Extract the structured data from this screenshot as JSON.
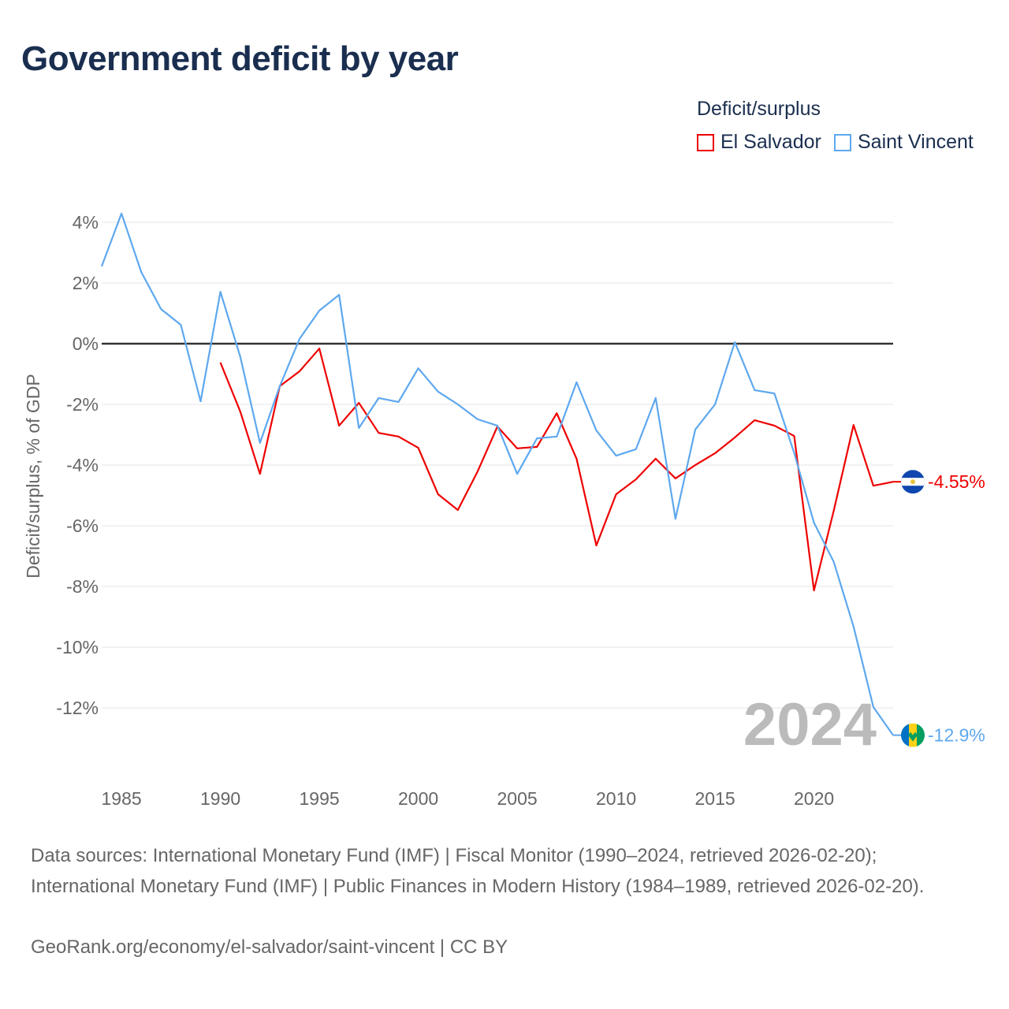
{
  "title": "Government deficit by year",
  "legend": {
    "title": "Deficit/surplus",
    "items": [
      {
        "name": "El Salvador",
        "color": "#ee0000"
      },
      {
        "name": "Saint Vincent",
        "color": "#5ea8ee"
      }
    ]
  },
  "chart_data": {
    "type": "line",
    "title": "Government deficit by year",
    "xlabel": "",
    "ylabel": "Deficit/surplus, % of GDP",
    "xlim": [
      1984,
      2024
    ],
    "ylim": [
      -13,
      4.5
    ],
    "x_ticks": [
      1985,
      1990,
      1995,
      2000,
      2005,
      2010,
      2015,
      2020
    ],
    "y_ticks": [
      4,
      2,
      0,
      -2,
      -4,
      -6,
      -8,
      -10,
      -12
    ],
    "y_tick_labels": [
      "4%",
      "2%",
      "0%",
      "-2%",
      "-4%",
      "-6%",
      "-8%",
      "-10%",
      "-12%"
    ],
    "grid": true,
    "legend_position": "top-right",
    "year_annotation": "2024",
    "series": [
      {
        "name": "El Salvador",
        "color": "#ee0000",
        "end_label": "-4.55%",
        "x": [
          1990,
          1991,
          1992,
          1993,
          1994,
          1995,
          1996,
          1997,
          1998,
          1999,
          2000,
          2001,
          2002,
          2003,
          2004,
          2005,
          2006,
          2007,
          2008,
          2009,
          2010,
          2011,
          2012,
          2013,
          2014,
          2015,
          2016,
          2017,
          2018,
          2019,
          2020,
          2021,
          2022,
          2023,
          2024
        ],
        "values": [
          -0.62,
          -2.23,
          -4.29,
          -1.4,
          -0.91,
          -0.16,
          -2.7,
          -1.95,
          -2.94,
          -3.06,
          -3.43,
          -4.96,
          -5.48,
          -4.21,
          -2.73,
          -3.45,
          -3.4,
          -2.29,
          -3.79,
          -6.65,
          -4.96,
          -4.47,
          -3.79,
          -4.44,
          -4.0,
          -3.61,
          -3.09,
          -2.52,
          -2.7,
          -3.04,
          -8.13,
          -5.5,
          -2.68,
          -4.68,
          -4.55
        ]
      },
      {
        "name": "Saint Vincent",
        "color": "#5ea8ee",
        "end_label": "-12.9%",
        "x": [
          1984,
          1985,
          1986,
          1987,
          1988,
          1989,
          1990,
          1991,
          1992,
          1993,
          1994,
          1995,
          1996,
          1997,
          1998,
          1999,
          2000,
          2001,
          2002,
          2003,
          2004,
          2005,
          2006,
          2007,
          2008,
          2009,
          2010,
          2011,
          2012,
          2013,
          2014,
          2015,
          2016,
          2017,
          2018,
          2019,
          2020,
          2021,
          2022,
          2023,
          2024
        ],
        "values": [
          2.55,
          4.29,
          2.36,
          1.14,
          0.62,
          -1.9,
          1.71,
          -0.42,
          -3.27,
          -1.4,
          0.16,
          1.09,
          1.61,
          -2.78,
          -1.79,
          -1.92,
          -0.81,
          -1.58,
          -2.0,
          -2.49,
          -2.7,
          -4.29,
          -3.12,
          -3.06,
          -1.27,
          -2.86,
          -3.69,
          -3.48,
          -1.79,
          -5.77,
          -2.83,
          -2.0,
          0.05,
          -1.53,
          -1.64,
          -3.6,
          -5.9,
          -7.19,
          -9.32,
          -11.97,
          -12.9
        ]
      }
    ]
  },
  "footer": {
    "sources": "Data sources: International Monetary Fund (IMF) | Fiscal Monitor (1990–2024, retrieved 2026-02-20); International Monetary Fund (IMF) | Public Finances in Modern History (1984–1989, retrieved 2026-02-20).",
    "credit": "GeoRank.org/economy/el-salvador/saint-vincent | CC BY"
  }
}
